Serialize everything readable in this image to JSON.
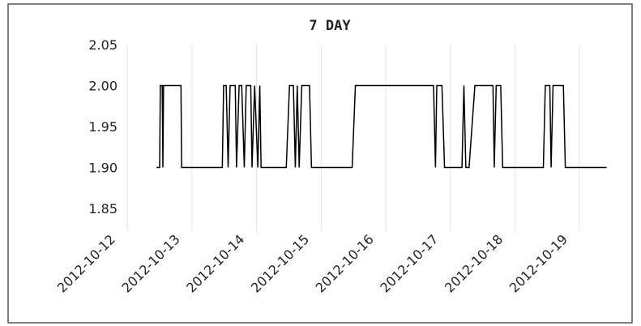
{
  "chart_data": {
    "type": "line",
    "title": "7 DAY",
    "x": [
      0.45,
      0.5,
      0.51,
      0.54,
      0.55,
      0.56,
      0.83,
      0.84,
      1.47,
      1.49,
      1.53,
      1.56,
      1.59,
      1.67,
      1.69,
      1.73,
      1.77,
      1.81,
      1.84,
      1.91,
      1.93,
      1.97,
      2.02,
      2.05,
      2.07,
      2.46,
      2.51,
      2.57,
      2.6,
      2.63,
      2.66,
      2.7,
      2.82,
      2.85,
      3.48,
      3.53,
      4.74,
      4.77,
      4.79,
      4.87,
      4.91,
      5.18,
      5.21,
      5.24,
      5.29,
      5.38,
      5.66,
      5.68,
      5.71,
      5.78,
      5.81,
      6.44,
      6.47,
      6.54,
      6.56,
      6.59,
      6.75,
      6.78,
      7.42
    ],
    "series": [
      {
        "color": "#000000",
        "values": [
          1.9,
          1.9,
          2,
          2,
          1.9,
          2,
          2,
          1.9,
          1.9,
          2,
          2,
          1.9,
          2,
          2,
          1.9,
          2,
          2,
          1.9,
          2,
          2,
          1.9,
          2,
          1.9,
          2,
          1.9,
          1.9,
          2,
          2,
          1.9,
          2,
          1.9,
          2,
          2,
          1.9,
          1.9,
          2,
          2,
          1.9,
          2,
          2,
          1.9,
          1.9,
          2,
          1.9,
          1.9,
          2,
          2,
          1.9,
          2,
          2,
          1.9,
          1.9,
          2,
          2,
          1.9,
          2,
          2,
          1.9,
          1.9
        ]
      }
    ],
    "xlim": [
      -0.09,
      7.5
    ],
    "xticks": [
      {
        "value": 0,
        "label": "2012-10-12"
      },
      {
        "value": 1,
        "label": "2012-10-13"
      },
      {
        "value": 2,
        "label": "2012-10-14"
      },
      {
        "value": 3,
        "label": "2012-10-15"
      },
      {
        "value": 4,
        "label": "2012-10-16"
      },
      {
        "value": 5,
        "label": "2012-10-17"
      },
      {
        "value": 6,
        "label": "2012-10-18"
      },
      {
        "value": 7,
        "label": "2012-10-19"
      }
    ],
    "ylim": [
      1.85,
      2.05
    ],
    "yticks": [
      {
        "value": 1.85,
        "label": "1.85"
      },
      {
        "value": 1.9,
        "label": "1.90"
      },
      {
        "value": 1.95,
        "label": "1.95"
      },
      {
        "value": 2.0,
        "label": "2.00"
      },
      {
        "value": 2.05,
        "label": "2.05"
      }
    ],
    "grid": true
  }
}
